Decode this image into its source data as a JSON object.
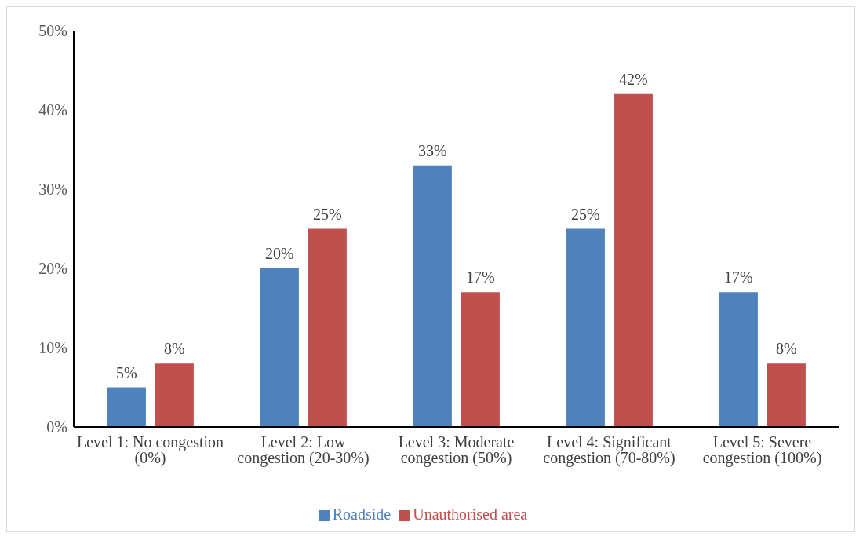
{
  "chart_data": {
    "type": "bar",
    "categories": [
      "Level 1: No congestion (0%)",
      "Level 2: Low congestion (20-30%)",
      "Level 3: Moderate congestion (50%)",
      "Level 4: Significant congestion (70-80%)",
      "Level 5: Severe congestion (100%)"
    ],
    "series": [
      {
        "name": "Roadside",
        "color": "#4f81bd",
        "values": [
          5,
          20,
          33,
          25,
          17
        ],
        "value_labels": [
          "5%",
          "20%",
          "33%",
          "25%",
          "17%"
        ]
      },
      {
        "name": "Unauthorised area",
        "color": "#c0504d",
        "values": [
          8,
          25,
          17,
          42,
          8
        ],
        "value_labels": [
          "8%",
          "25%",
          "17%",
          "42%",
          "8%"
        ]
      }
    ],
    "ylim": [
      0,
      50
    ],
    "yticks": [
      {
        "value": 0,
        "label": "0%"
      },
      {
        "value": 10,
        "label": "10%"
      },
      {
        "value": 20,
        "label": "20%"
      },
      {
        "value": 30,
        "label": "30%"
      },
      {
        "value": 40,
        "label": "40%"
      },
      {
        "value": 50,
        "label": "50%"
      }
    ],
    "grid": false,
    "legend": "bottom"
  }
}
